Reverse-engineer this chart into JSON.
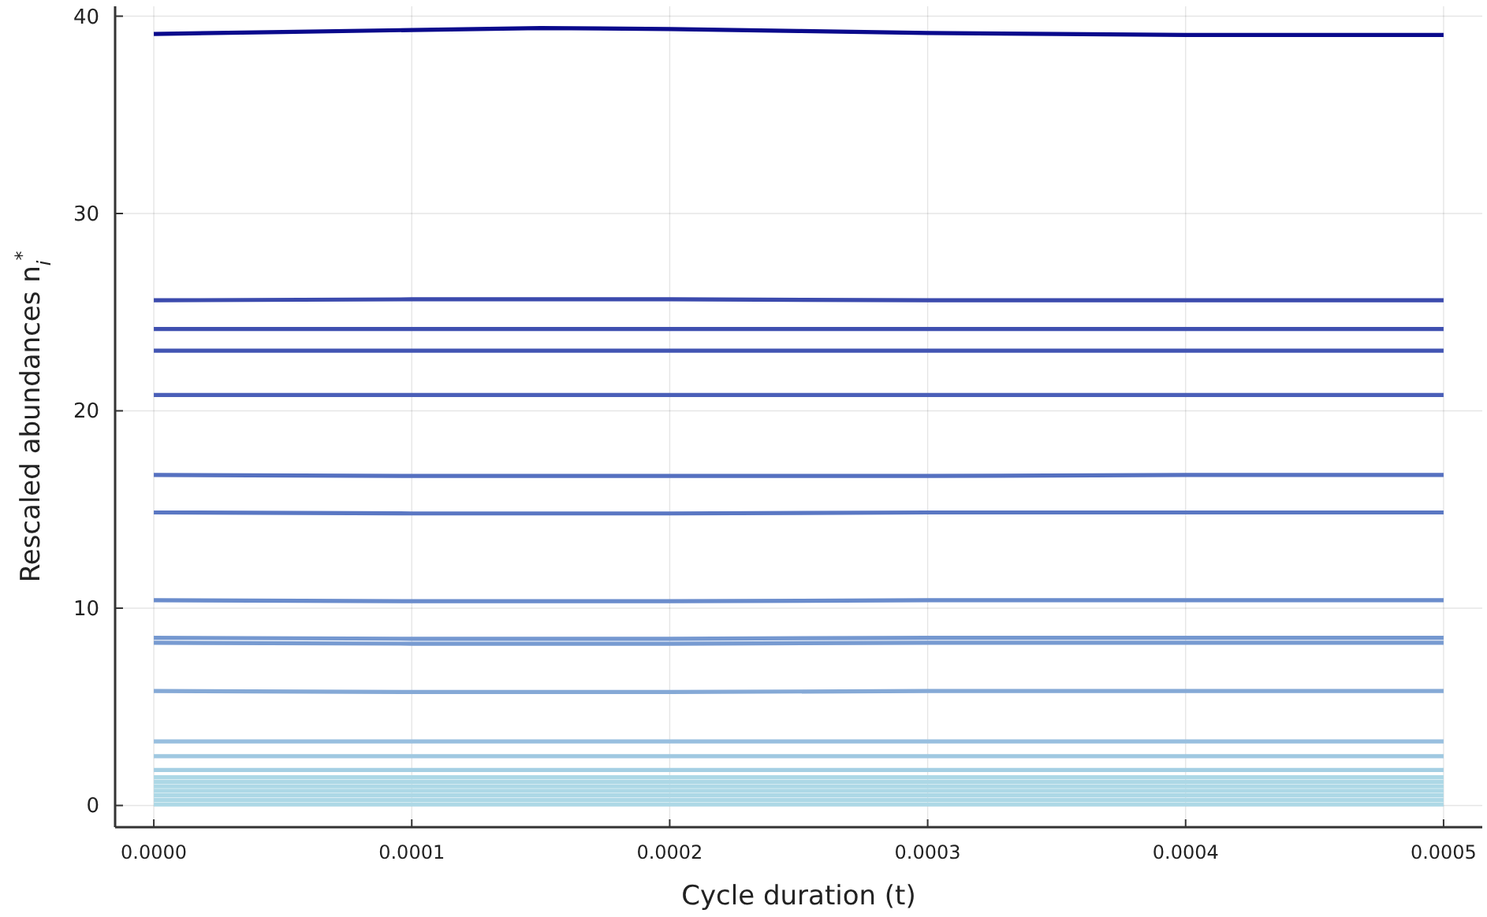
{
  "chart_data": {
    "type": "line",
    "xlabel": "Cycle duration (t)",
    "ylabel": "Rescaled abundances n$_{i}$$^{*}$",
    "x": [
      0,
      0.0001,
      0.0002,
      0.0003,
      0.0004,
      0.0005
    ],
    "xlim": [
      -1.5e-05,
      0.000515
    ],
    "ylim": [
      -1.1,
      40.5
    ],
    "xticks": [
      {
        "value": 0,
        "label": "0.0000"
      },
      {
        "value": 0.0001,
        "label": "0.0001"
      },
      {
        "value": 0.0002,
        "label": "0.0002"
      },
      {
        "value": 0.0003,
        "label": "0.0003"
      },
      {
        "value": 0.0004,
        "label": "0.0004"
      },
      {
        "value": 0.0005,
        "label": "0.0005"
      }
    ],
    "yticks": [
      0,
      10,
      20,
      30,
      40
    ],
    "grid": true,
    "marker": "none",
    "line_style": "solid",
    "series": [
      {
        "color": "#0a0a8c",
        "x": [
          0,
          5e-05,
          0.0001,
          0.00015,
          0.0002,
          0.00025,
          0.0003,
          0.00035,
          0.0004,
          0.00045,
          0.0005
        ],
        "values": [
          39.1,
          39.2,
          39.3,
          39.4,
          39.35,
          39.25,
          39.15,
          39.1,
          39.05,
          39.05,
          39.05
        ]
      },
      {
        "color": "#3b4aad",
        "values": [
          25.6,
          25.65,
          25.65,
          25.6,
          25.6,
          25.6
        ]
      },
      {
        "color": "#3f50b0",
        "values": [
          24.15,
          24.15,
          24.15,
          24.15,
          24.15,
          24.15
        ]
      },
      {
        "color": "#4255b3",
        "values": [
          23.05,
          23.05,
          23.05,
          23.05,
          23.05,
          23.05
        ]
      },
      {
        "color": "#4a5fb8",
        "values": [
          20.8,
          20.8,
          20.8,
          20.8,
          20.8,
          20.8
        ]
      },
      {
        "color": "#5570c0",
        "values": [
          16.75,
          16.7,
          16.7,
          16.7,
          16.75,
          16.75
        ]
      },
      {
        "color": "#5a77c3",
        "values": [
          14.85,
          14.8,
          14.8,
          14.85,
          14.85,
          14.85
        ]
      },
      {
        "color": "#6a8ccc",
        "values": [
          10.4,
          10.35,
          10.35,
          10.4,
          10.4,
          10.4
        ]
      },
      {
        "color": "#7598d0",
        "values": [
          8.5,
          8.45,
          8.45,
          8.5,
          8.5,
          8.5
        ]
      },
      {
        "color": "#789bd1",
        "values": [
          8.25,
          8.2,
          8.2,
          8.25,
          8.25,
          8.25
        ]
      },
      {
        "color": "#85a9d6",
        "values": [
          5.8,
          5.75,
          5.75,
          5.8,
          5.8,
          5.8
        ]
      },
      {
        "color": "#98bfdf",
        "values": [
          3.25,
          3.25,
          3.25,
          3.25,
          3.25,
          3.25
        ]
      },
      {
        "color": "#9fc8e1",
        "values": [
          2.5,
          2.5,
          2.5,
          2.5,
          2.5,
          2.5
        ]
      },
      {
        "color": "#a5cfe3",
        "values": [
          1.8,
          1.8,
          1.8,
          1.8,
          1.8,
          1.8
        ]
      },
      {
        "color": "#add8e6",
        "values": [
          1.43,
          1.43,
          1.43,
          1.43,
          1.43,
          1.43
        ]
      },
      {
        "color": "#add8e6",
        "values": [
          1.2,
          1.2,
          1.2,
          1.2,
          1.2,
          1.2
        ]
      },
      {
        "color": "#add8e6",
        "values": [
          0.97,
          0.97,
          0.97,
          0.97,
          0.97,
          0.97
        ]
      },
      {
        "color": "#add8e6",
        "values": [
          0.74,
          0.74,
          0.74,
          0.74,
          0.74,
          0.74
        ]
      },
      {
        "color": "#add8e6",
        "values": [
          0.51,
          0.51,
          0.51,
          0.51,
          0.51,
          0.51
        ]
      },
      {
        "color": "#add8e6",
        "values": [
          0.28,
          0.28,
          0.28,
          0.28,
          0.28,
          0.28
        ]
      },
      {
        "color": "#add8e6",
        "values": [
          0.05,
          0.05,
          0.05,
          0.05,
          0.05,
          0.05
        ]
      }
    ]
  }
}
